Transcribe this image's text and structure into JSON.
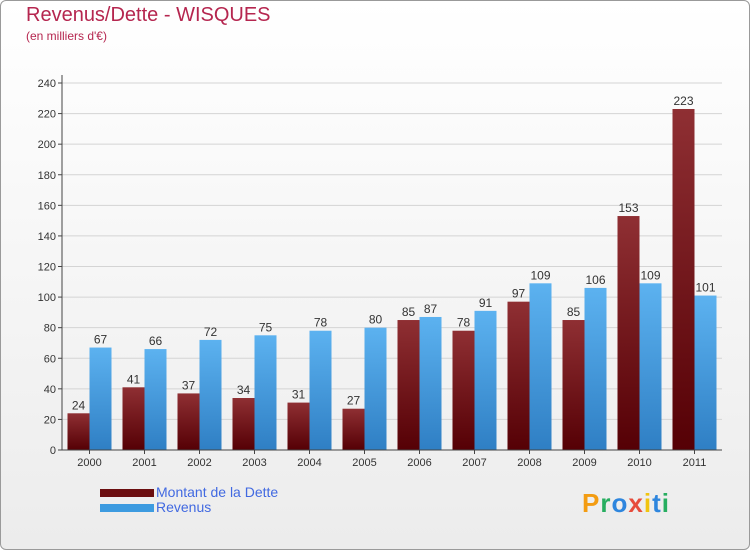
{
  "header": {
    "title": "Revenus/Dette - WISQUES",
    "subtitle": "(en milliers d'€)"
  },
  "chart_data": {
    "type": "bar",
    "title": "Revenus/Dette - WISQUES",
    "ylabel": "(en milliers d'€)",
    "xlabel": "",
    "ylim": [
      0,
      240
    ],
    "yticks": [
      0,
      20,
      40,
      60,
      80,
      100,
      120,
      140,
      160,
      180,
      200,
      220,
      240
    ],
    "grid": true,
    "legend_position": "bottom-left",
    "categories": [
      "2000",
      "2001",
      "2002",
      "2003",
      "2004",
      "2005",
      "2006",
      "2007",
      "2008",
      "2009",
      "2010",
      "2011"
    ],
    "series": [
      {
        "name": "Montant de la Dette",
        "color": "#7a1a1e",
        "values": [
          24,
          41,
          37,
          34,
          31,
          27,
          85,
          78,
          97,
          85,
          153,
          223
        ]
      },
      {
        "name": "Revenus",
        "color": "#4ea6e8",
        "values": [
          67,
          66,
          72,
          75,
          78,
          80,
          87,
          91,
          109,
          106,
          109,
          101
        ]
      }
    ]
  },
  "legend": {
    "items": [
      {
        "label": "Montant de la Dette",
        "color": "#6b0e10"
      },
      {
        "label": "Revenus",
        "color": "#3d9be0"
      }
    ]
  },
  "logo": {
    "letters": [
      {
        "char": "P",
        "color": "#f39c12"
      },
      {
        "char": "r",
        "color": "#27ae60"
      },
      {
        "char": "o",
        "color": "#2e86de"
      },
      {
        "char": "x",
        "color": "#e74c3c"
      },
      {
        "char": "i",
        "color": "#f1c40f"
      },
      {
        "char": "t",
        "color": "#2e86de"
      },
      {
        "char": "i",
        "color": "#27ae60"
      }
    ]
  }
}
